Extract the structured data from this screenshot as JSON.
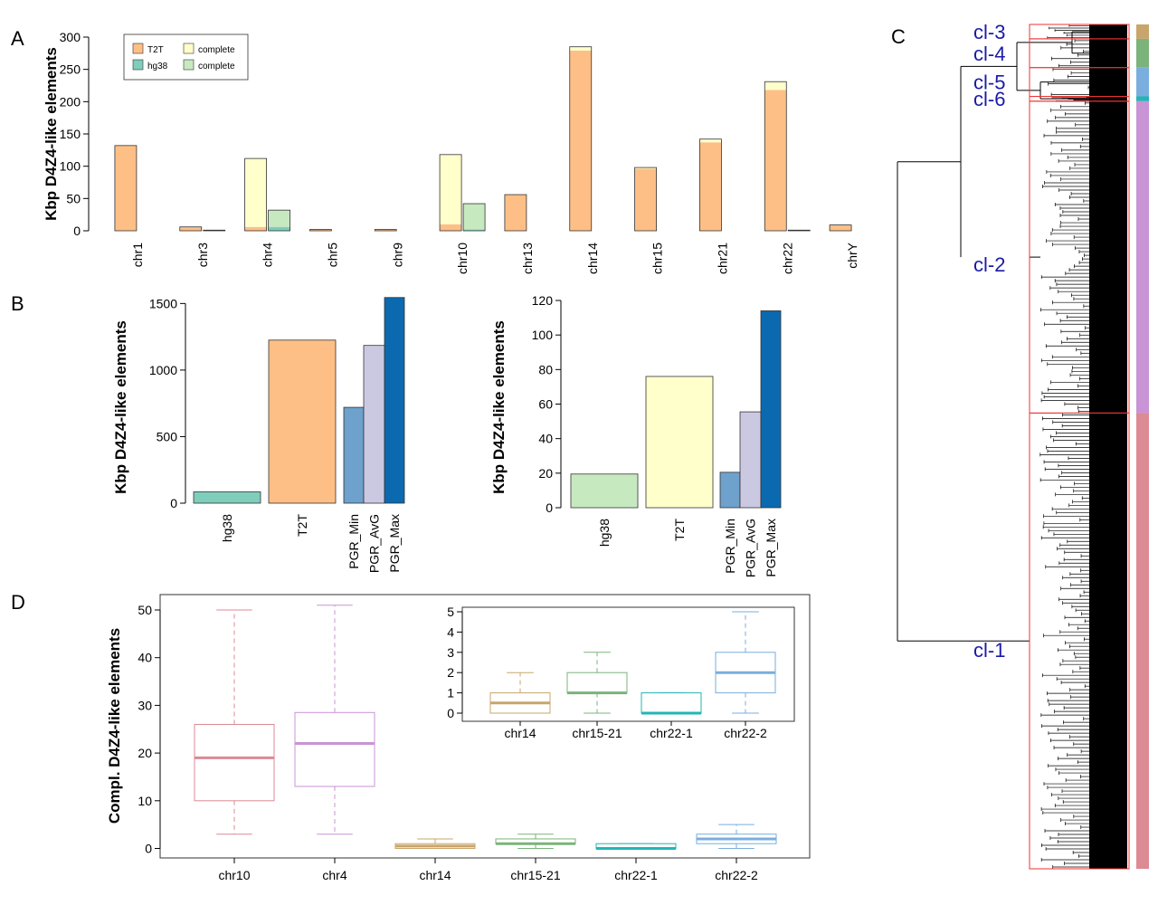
{
  "panel_labels": {
    "a": "A",
    "b": "B",
    "c": "C",
    "d": "D"
  },
  "colors": {
    "t2t": "#fdbf86",
    "hg38": "#7fcdbb",
    "t2t_complete": "#ffffcc",
    "hg38_complete": "#c7e9c0",
    "pgr_min": "#6ea1cb",
    "pgr_avg": "#cbc9e2",
    "pgr_max": "#0b69b0",
    "cl1": "#dc8a94",
    "cl2": "#c994d6",
    "cl3": "#c9a56b",
    "cl4": "#7bb37b",
    "cl5": "#7aaede",
    "cl6": "#22b5b5"
  },
  "chart_data": [
    {
      "id": "A",
      "type": "bar",
      "ylabel": "Kbp D4Z4-like elements",
      "ylim": [
        0,
        300
      ],
      "yticks": [
        0,
        50,
        100,
        150,
        200,
        250,
        300
      ],
      "categories": [
        "chr1",
        "chr3",
        "chr4",
        "chr5",
        "chr9",
        "chr10",
        "chr13",
        "chr14",
        "chr15",
        "chr21",
        "chr22",
        "chrY"
      ],
      "legend": {
        "position": "top-left",
        "entries": [
          "T2T",
          "hg38",
          "complete",
          "complete"
        ]
      },
      "series": [
        {
          "name": "T2T",
          "values": [
            132,
            6,
            6,
            2,
            2,
            10,
            56,
            279,
            96,
            137,
            218,
            9
          ]
        },
        {
          "name": "complete",
          "values": [
            0,
            0,
            106,
            0,
            0,
            108,
            0,
            6,
            2,
            5,
            13,
            0
          ]
        },
        {
          "name": "hg38",
          "values": [
            0,
            1,
            6,
            0,
            0,
            2,
            0,
            0,
            0,
            0,
            1,
            0
          ]
        },
        {
          "name": "complete",
          "values": [
            0,
            0,
            26,
            0,
            0,
            40,
            0,
            0,
            0,
            0,
            0,
            0
          ]
        }
      ]
    },
    {
      "id": "B-left",
      "type": "bar",
      "ylabel": "Kbp D4Z4-like elements",
      "ylim": [
        0,
        1550
      ],
      "yticks": [
        0,
        500,
        1000,
        1500
      ],
      "categories": [
        "hg38",
        "T2T",
        "PGR_Min",
        "PGR_AvG",
        "PGR_Max"
      ],
      "values": [
        85,
        1225,
        720,
        1185,
        1545
      ]
    },
    {
      "id": "B-right",
      "type": "bar",
      "ylabel": "Kbp D4Z4-like elements",
      "ylim": [
        0,
        120
      ],
      "yticks": [
        0,
        20,
        40,
        60,
        80,
        100,
        120
      ],
      "categories": [
        "hg38",
        "T2T",
        "PGR_Min",
        "PGR_AvG",
        "PGR_Max"
      ],
      "values": [
        19.5,
        76,
        20.5,
        55.5,
        114
      ]
    },
    {
      "id": "C",
      "type": "dendrogram",
      "clusters": [
        {
          "name": "cl-3",
          "size": 3
        },
        {
          "name": "cl-4",
          "size": 6
        },
        {
          "name": "cl-5",
          "size": 6
        },
        {
          "name": "cl-6",
          "size": 1
        },
        {
          "name": "cl-2",
          "size": 65
        },
        {
          "name": "cl-1",
          "size": 95
        }
      ]
    },
    {
      "id": "D",
      "type": "boxplot",
      "ylabel": "Compl. D4Z4-like elements",
      "ylim": [
        0,
        50
      ],
      "yticks": [
        0,
        10,
        20,
        30,
        40,
        50
      ],
      "categories": [
        "chr10",
        "chr4",
        "chr14",
        "chr15-21",
        "chr22-1",
        "chr22-2"
      ],
      "boxes": [
        {
          "min": 3,
          "q1": 10,
          "median": 19,
          "q3": 26,
          "max": 50
        },
        {
          "min": 3,
          "q1": 13,
          "median": 22,
          "q3": 28.5,
          "max": 51
        },
        {
          "min": 0,
          "q1": 0,
          "median": 0.5,
          "q3": 1,
          "max": 2
        },
        {
          "min": 0,
          "q1": 1,
          "median": 1,
          "q3": 2,
          "max": 3
        },
        {
          "min": 0,
          "q1": 0,
          "median": 0,
          "q3": 1,
          "max": 1
        },
        {
          "min": 0,
          "q1": 1,
          "median": 2,
          "q3": 3,
          "max": 5
        }
      ],
      "inset": {
        "ylim": [
          0,
          5
        ],
        "yticks": [
          0,
          1,
          2,
          3,
          4,
          5
        ],
        "categories": [
          "chr14",
          "chr15-21",
          "chr22-1",
          "chr22-2"
        ],
        "boxes": [
          {
            "min": 0,
            "q1": 0,
            "median": 0.5,
            "q3": 1,
            "max": 2
          },
          {
            "min": 0,
            "q1": 1,
            "median": 1,
            "q3": 2,
            "max": 3
          },
          {
            "min": 0,
            "q1": 0,
            "median": 0,
            "q3": 1,
            "max": 1
          },
          {
            "min": 0,
            "q1": 1,
            "median": 2,
            "q3": 3,
            "max": 5
          }
        ]
      }
    }
  ]
}
